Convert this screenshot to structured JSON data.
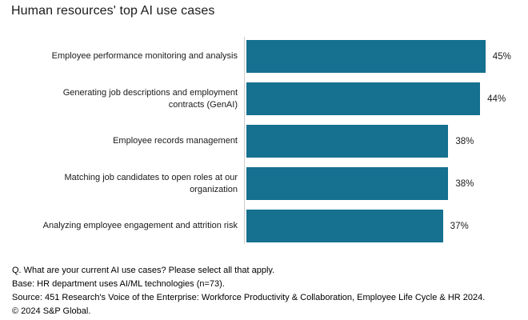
{
  "title": "Human resources' top AI use cases",
  "colors": {
    "bar": "#16708F",
    "axis": "#cccccc",
    "title_text": "#1a1a1a",
    "label_text": "#1a1a1a",
    "footnote_text": "#000000",
    "background": "#ffffff"
  },
  "chart_data": {
    "type": "bar",
    "orientation": "horizontal",
    "title": "Human resources' top AI use cases",
    "categories": [
      "Employee performance monitoring and analysis",
      "Generating job descriptions and employment contracts (GenAI)",
      "Employee records management",
      "Matching job candidates to open roles at our organization",
      "Analyzing employee engagement and attrition risk"
    ],
    "categories_wrapped": [
      [
        "Employee performance monitoring and analysis"
      ],
      [
        "Generating job descriptions and employment",
        "contracts (GenAI)"
      ],
      [
        "Employee records management"
      ],
      [
        "Matching job candidates to open roles at our",
        "organization"
      ],
      [
        "Analyzing employee engagement and attrition risk"
      ]
    ],
    "values": [
      45,
      44,
      38,
      38,
      37
    ],
    "value_labels": [
      "45%",
      "44%",
      "38%",
      "38%",
      "37%"
    ],
    "unit": "percent",
    "xlim": [
      0,
      50
    ],
    "grid": false,
    "legend": false,
    "data_labels_position": "outside-end"
  },
  "footnotes": {
    "question": "Q. What are your current AI use cases? Please select all that apply.",
    "base": "Base: HR department uses AI/ML technologies (n=73).",
    "source": "Source: 451 Research's Voice of the Enterprise: Workforce Productivity & Collaboration, Employee Life Cycle & HR 2024.",
    "copyright": "© 2024 S&P Global."
  }
}
